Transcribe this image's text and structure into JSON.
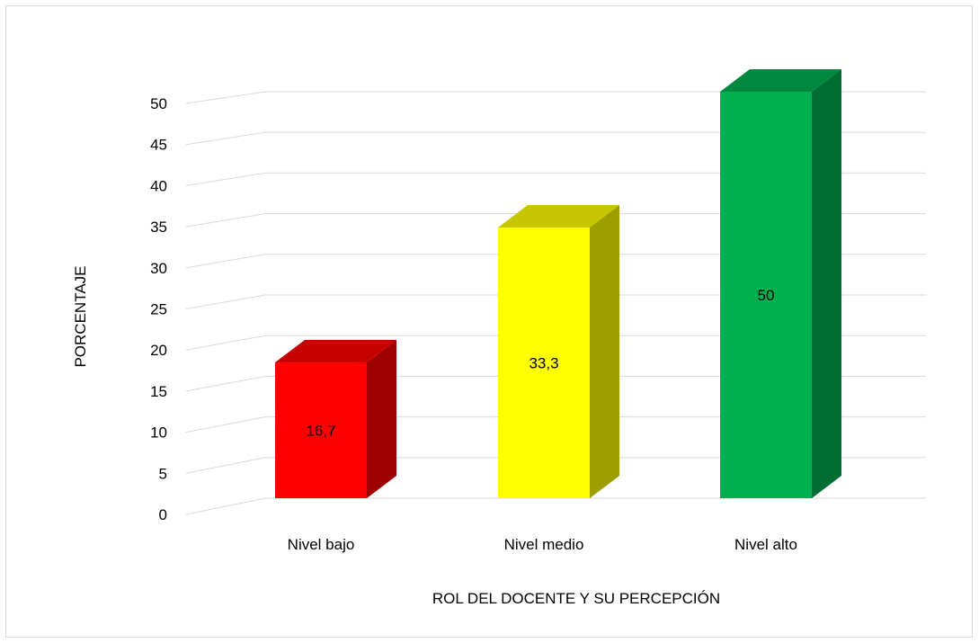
{
  "chart_data": {
    "type": "bar",
    "title": "",
    "xlabel": "ROL DEL DOCENTE Y SU PERCEPCIÓN",
    "ylabel": "PORCENTAJE",
    "ylim": [
      0,
      50
    ],
    "ytick_step": 5,
    "yticks": [
      "0",
      "5",
      "10",
      "15",
      "20",
      "25",
      "30",
      "35",
      "40",
      "45",
      "50"
    ],
    "categories": [
      "Nivel bajo",
      "Nivel medio",
      "Nivel alto"
    ],
    "values": [
      16.7,
      33.3,
      50
    ],
    "data_labels": [
      "16,7",
      "33,3",
      "50"
    ],
    "colors": [
      "#ff0000",
      "#ffff00",
      "#00b050"
    ],
    "grid": true,
    "style": "3d-column",
    "legend": "none"
  }
}
